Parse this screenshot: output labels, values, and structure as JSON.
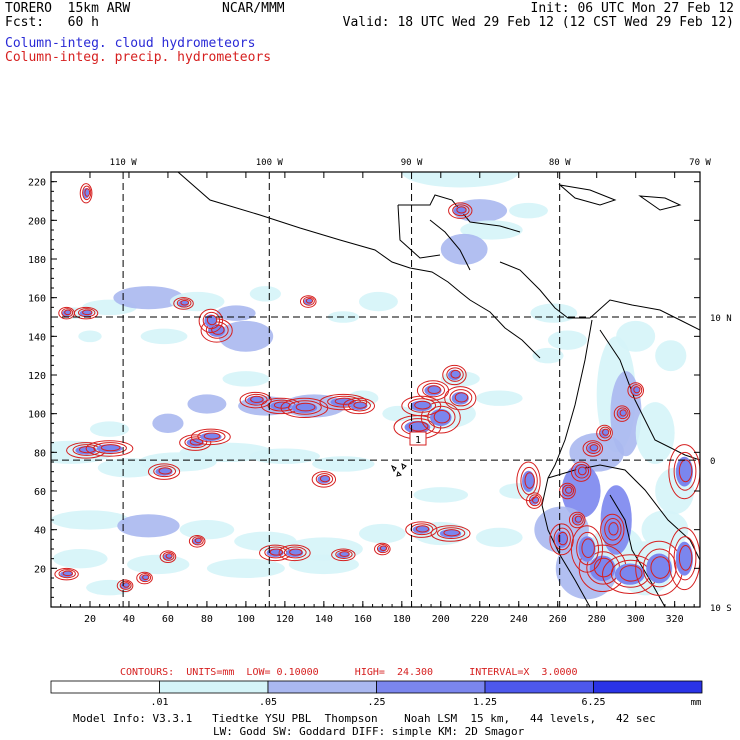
{
  "header": {
    "model": "TORERO  15km ARW",
    "forecast": "Fcst:   60 h",
    "org": "NCAR/MMM",
    "init": "Init: 06 UTC Mon 27 Feb 12",
    "valid": "Valid: 18 UTC Wed 29 Feb 12 (12 CST Wed 29 Feb 12)"
  },
  "legend": {
    "cloud": "Column-integ. cloud hydrometeors",
    "precip": "Column-integ. precip. hydrometeors"
  },
  "colors": {
    "cloud": "#2a2ad6",
    "precip": "#d62020",
    "shade": [
      "#ffffff",
      "#d5f4f8",
      "#aab8f0",
      "#7b86ee",
      "#4d58ec",
      "#2a33e6"
    ]
  },
  "chart_data": {
    "type": "heatmap",
    "title": "Column-integrated cloud and precipitation hydrometeors",
    "x_grid_ticks": [
      20,
      40,
      60,
      80,
      100,
      120,
      140,
      160,
      180,
      200,
      220,
      240,
      260,
      280,
      300,
      320
    ],
    "xlim": [
      0,
      333
    ],
    "y_grid_ticks": [
      20,
      40,
      60,
      80,
      100,
      120,
      140,
      160,
      180,
      200,
      220
    ],
    "ylim": [
      0,
      225
    ],
    "longitude_labels": [
      {
        "label": "110 W",
        "x": 37
      },
      {
        "label": "100 W",
        "x": 112
      },
      {
        "label": "90 W",
        "x": 185
      },
      {
        "label": "80 W",
        "x": 261
      },
      {
        "label": "70 W",
        "x": 333
      }
    ],
    "latitude_labels": [
      {
        "label": "10 N",
        "y": 150
      },
      {
        "label": "0",
        "y": 76
      },
      {
        "label": "10 S",
        "y": 0
      }
    ],
    "color_scale": {
      "breaks": [
        ".01",
        ".05",
        ".25",
        "1.25",
        "6.25"
      ],
      "units": "mm"
    },
    "contours": {
      "units": "mm",
      "low": 0.1,
      "high": 24.3,
      "interval": 3.0,
      "text": "CONTOURS:  UNITS=mm  LOW= 0.10000      HIGH=  24.300      INTERVAL=X  3.0000"
    },
    "low_marker": "1",
    "cloud_cells": [
      [
        12,
        152,
        6,
        3,
        1
      ],
      [
        30,
        155,
        14,
        4,
        1
      ],
      [
        50,
        160,
        18,
        6,
        2
      ],
      [
        75,
        158,
        14,
        5,
        1
      ],
      [
        95,
        152,
        10,
        4,
        2
      ],
      [
        110,
        162,
        8,
        4,
        1
      ],
      [
        58,
        140,
        12,
        4,
        1
      ],
      [
        100,
        140,
        14,
        8,
        2
      ],
      [
        150,
        150,
        8,
        3,
        1
      ],
      [
        168,
        158,
        10,
        5,
        1
      ],
      [
        20,
        140,
        6,
        3,
        1
      ],
      [
        10,
        80,
        22,
        6,
        1
      ],
      [
        40,
        72,
        16,
        5,
        1
      ],
      [
        65,
        75,
        20,
        5,
        1
      ],
      [
        90,
        80,
        24,
        5,
        1
      ],
      [
        120,
        78,
        18,
        4,
        1
      ],
      [
        150,
        74,
        16,
        4,
        1
      ],
      [
        60,
        95,
        8,
        5,
        2
      ],
      [
        80,
        105,
        10,
        5,
        2
      ],
      [
        110,
        104,
        14,
        5,
        2
      ],
      [
        135,
        104,
        16,
        6,
        2
      ],
      [
        160,
        108,
        8,
        4,
        1
      ],
      [
        100,
        118,
        12,
        4,
        1
      ],
      [
        30,
        92,
        10,
        4,
        1
      ],
      [
        178,
        100,
        8,
        4,
        1
      ],
      [
        200,
        100,
        18,
        8,
        1
      ],
      [
        230,
        108,
        12,
        4,
        1
      ],
      [
        210,
        118,
        10,
        4,
        1
      ],
      [
        20,
        45,
        20,
        5,
        1
      ],
      [
        50,
        42,
        16,
        6,
        2
      ],
      [
        80,
        40,
        14,
        5,
        1
      ],
      [
        110,
        34,
        16,
        5,
        1
      ],
      [
        140,
        30,
        20,
        6,
        1
      ],
      [
        170,
        38,
        12,
        5,
        1
      ],
      [
        200,
        38,
        14,
        6,
        1
      ],
      [
        230,
        36,
        12,
        5,
        1
      ],
      [
        15,
        25,
        14,
        5,
        1
      ],
      [
        55,
        22,
        16,
        5,
        1
      ],
      [
        100,
        20,
        20,
        5,
        1
      ],
      [
        140,
        22,
        18,
        5,
        1
      ],
      [
        30,
        10,
        12,
        4,
        1
      ],
      [
        200,
        58,
        14,
        4,
        1
      ],
      [
        240,
        60,
        10,
        4,
        1
      ],
      [
        210,
        225,
        30,
        8,
        1
      ],
      [
        220,
        205,
        14,
        6,
        2
      ],
      [
        226,
        195,
        16,
        5,
        1
      ],
      [
        212,
        185,
        12,
        8,
        2
      ],
      [
        245,
        205,
        10,
        4,
        1
      ],
      [
        258,
        152,
        12,
        5,
        1
      ],
      [
        265,
        138,
        10,
        5,
        1
      ],
      [
        255,
        130,
        8,
        4,
        1
      ],
      [
        290,
        110,
        10,
        30,
        1
      ],
      [
        295,
        100,
        8,
        22,
        2
      ],
      [
        280,
        80,
        14,
        10,
        2
      ],
      [
        272,
        60,
        10,
        14,
        3
      ],
      [
        262,
        40,
        14,
        12,
        2
      ],
      [
        275,
        20,
        16,
        16,
        2
      ],
      [
        290,
        30,
        14,
        12,
        1
      ],
      [
        305,
        20,
        14,
        14,
        1
      ],
      [
        315,
        40,
        12,
        10,
        1
      ],
      [
        310,
        90,
        10,
        16,
        1
      ],
      [
        320,
        60,
        10,
        12,
        1
      ],
      [
        300,
        140,
        10,
        8,
        1
      ],
      [
        318,
        130,
        8,
        8,
        1
      ],
      [
        290,
        45,
        8,
        18,
        3
      ]
    ],
    "precip_cells": [
      [
        18,
        81,
        10,
        4
      ],
      [
        30,
        82,
        12,
        4
      ],
      [
        74,
        85,
        8,
        4
      ],
      [
        82,
        88,
        10,
        4
      ],
      [
        58,
        70,
        8,
        4
      ],
      [
        140,
        66,
        6,
        4
      ],
      [
        85,
        143,
        8,
        6
      ],
      [
        82,
        148,
        6,
        6
      ],
      [
        18,
        152,
        6,
        3
      ],
      [
        8,
        152,
        4,
        3
      ],
      [
        68,
        157,
        5,
        3
      ],
      [
        105,
        107,
        8,
        4
      ],
      [
        118,
        104,
        10,
        4
      ],
      [
        130,
        103,
        12,
        5
      ],
      [
        150,
        106,
        12,
        4
      ],
      [
        158,
        104,
        8,
        4
      ],
      [
        188,
        93,
        12,
        6
      ],
      [
        200,
        98,
        10,
        8
      ],
      [
        210,
        108,
        8,
        6
      ],
      [
        207,
        120,
        6,
        5
      ],
      [
        190,
        104,
        10,
        5
      ],
      [
        196,
        112,
        8,
        5
      ],
      [
        190,
        40,
        8,
        4
      ],
      [
        205,
        38,
        10,
        4
      ],
      [
        115,
        28,
        8,
        4
      ],
      [
        125,
        28,
        8,
        4
      ],
      [
        150,
        27,
        6,
        3
      ],
      [
        170,
        30,
        4,
        3
      ],
      [
        8,
        17,
        6,
        3
      ],
      [
        38,
        11,
        4,
        3
      ],
      [
        48,
        15,
        4,
        3
      ],
      [
        75,
        34,
        4,
        3
      ],
      [
        60,
        26,
        4,
        3
      ],
      [
        210,
        205,
        6,
        4
      ],
      [
        132,
        158,
        4,
        3
      ],
      [
        18,
        214,
        3,
        5
      ],
      [
        300,
        112,
        4,
        4
      ],
      [
        293,
        100,
        4,
        4
      ],
      [
        284,
        90,
        4,
        4
      ],
      [
        278,
        82,
        5,
        4
      ],
      [
        272,
        70,
        5,
        5
      ],
      [
        265,
        60,
        4,
        4
      ],
      [
        248,
        55,
        4,
        4
      ],
      [
        270,
        45,
        4,
        4
      ],
      [
        283,
        20,
        12,
        12
      ],
      [
        297,
        17,
        14,
        10
      ],
      [
        312,
        20,
        12,
        14
      ],
      [
        325,
        25,
        8,
        16
      ],
      [
        325,
        70,
        8,
        14
      ],
      [
        275,
        30,
        8,
        12
      ],
      [
        262,
        35,
        6,
        8
      ],
      [
        245,
        65,
        6,
        10
      ],
      [
        288,
        40,
        6,
        8
      ]
    ]
  },
  "footer": {
    "model_info_1": "Model Info: V3.3.1   Tiedtke YSU PBL  Thompson    Noah LSM  15 km,   44 levels,   42 sec",
    "model_info_2": "LW: Godd SW: Goddard DIFF: simple KM: 2D Smagor"
  }
}
